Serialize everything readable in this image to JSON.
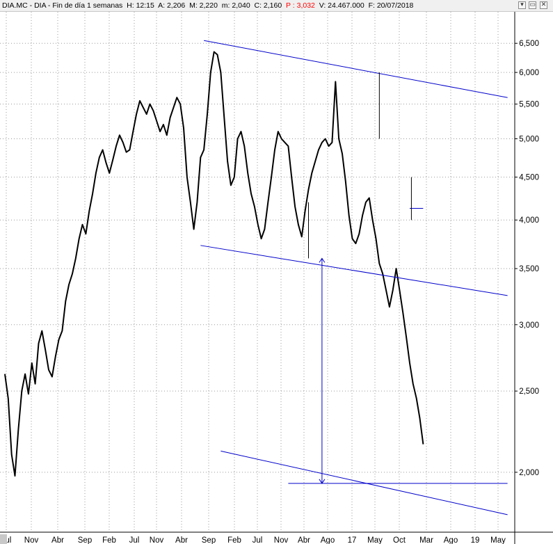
{
  "title_bar": {
    "symbol": "DIA.MC - DIA - Fin de día 1 semanas",
    "high": "H: 12:15",
    "open": "A: 2,206",
    "max": "M: 2,220",
    "min": "m: 2,040",
    "close": "C: 2,160",
    "pct": "P : 3,032",
    "volume": "V: 24.467.000",
    "date": "F: 20/07/2018"
  },
  "window_buttons": [
    "▾",
    "▭",
    "✕"
  ],
  "chart_data": {
    "type": "line",
    "scale": "log",
    "ylim": [
      1.69,
      6.9
    ],
    "yticks": [
      2.0,
      2.5,
      3.0,
      3.5,
      4.0,
      4.5,
      5.0,
      5.5,
      6.0,
      6.5
    ],
    "ytick_labels": [
      "2,000",
      "2,500",
      "3,000",
      "3,500",
      "4,000",
      "4,500",
      "5,000",
      "5,500",
      "6,000",
      "6,500"
    ],
    "xticks": [
      "Jul",
      "Nov",
      "Abr",
      "Sep",
      "Feb",
      "Jul",
      "Nov",
      "Abr",
      "Sep",
      "Feb",
      "Jul",
      "Nov",
      "Abr",
      "Ago",
      "17",
      "May",
      "Oct",
      "Mar",
      "Ago",
      "19",
      "May"
    ],
    "grid": true,
    "line_color": "#000000",
    "annotation_color": "#0000cc",
    "series": [
      {
        "values": [
          2.62,
          2.45,
          2.1,
          1.98,
          2.25,
          2.5,
          2.62,
          2.48,
          2.7,
          2.55,
          2.85,
          2.95,
          2.8,
          2.65,
          2.6,
          2.75,
          2.88,
          2.95,
          3.2,
          3.35,
          3.45,
          3.6,
          3.8,
          3.95,
          3.85,
          4.1,
          4.3,
          4.55,
          4.75,
          4.85,
          4.68,
          4.55,
          4.72,
          4.9,
          5.05,
          4.95,
          4.82,
          4.85,
          5.1,
          5.35,
          5.55,
          5.45,
          5.35,
          5.5,
          5.4,
          5.25,
          5.1,
          5.2,
          5.05,
          5.3,
          5.45,
          5.6,
          5.5,
          5.15,
          4.5,
          4.2,
          3.9,
          4.2,
          4.75,
          4.85,
          5.35,
          6.0,
          6.35,
          6.3,
          6.0,
          5.3,
          4.7,
          4.4,
          4.5,
          5.0,
          5.1,
          4.9,
          4.55,
          4.3,
          4.15,
          3.95,
          3.8,
          3.9,
          4.2,
          4.5,
          4.85,
          5.1,
          5.0,
          4.95,
          4.9,
          4.5,
          4.15,
          3.95,
          3.82,
          4.1,
          4.35,
          4.55,
          4.7,
          4.85,
          4.95,
          5.0,
          4.9,
          4.95,
          5.85,
          5.0,
          4.8,
          4.45,
          4.05,
          3.8,
          3.75,
          3.85,
          4.05,
          4.2,
          4.25,
          4.0,
          3.8,
          3.55,
          3.45,
          3.3,
          3.15,
          3.3,
          3.5,
          3.3,
          3.1,
          2.9,
          2.7,
          2.55,
          2.45,
          2.32,
          2.16
        ]
      }
    ],
    "trendlines": [
      {
        "from": [
          59.0,
          6.55
        ],
        "to": [
          149.0,
          5.6
        ]
      },
      {
        "from": [
          58.0,
          3.73
        ],
        "to": [
          149.0,
          3.25
        ]
      },
      {
        "from": [
          64.0,
          2.12
        ],
        "to": [
          149.0,
          1.78
        ]
      },
      {
        "from": [
          84.0,
          1.94
        ],
        "to": [
          149.0,
          1.94
        ]
      },
      {
        "from": [
          120.0,
          4.13
        ],
        "to": [
          124.0,
          4.13
        ]
      }
    ],
    "markers": [
      {
        "type": "arrow",
        "x": 94.0,
        "from": 3.6,
        "to": 1.94
      },
      {
        "type": "spike",
        "x": 90.0,
        "from": 3.6,
        "to": 4.2
      },
      {
        "type": "spike",
        "x": 111.0,
        "from": 5.0,
        "to": 6.0
      },
      {
        "type": "spike",
        "x": 120.5,
        "from": 4.0,
        "to": 4.5
      }
    ]
  }
}
